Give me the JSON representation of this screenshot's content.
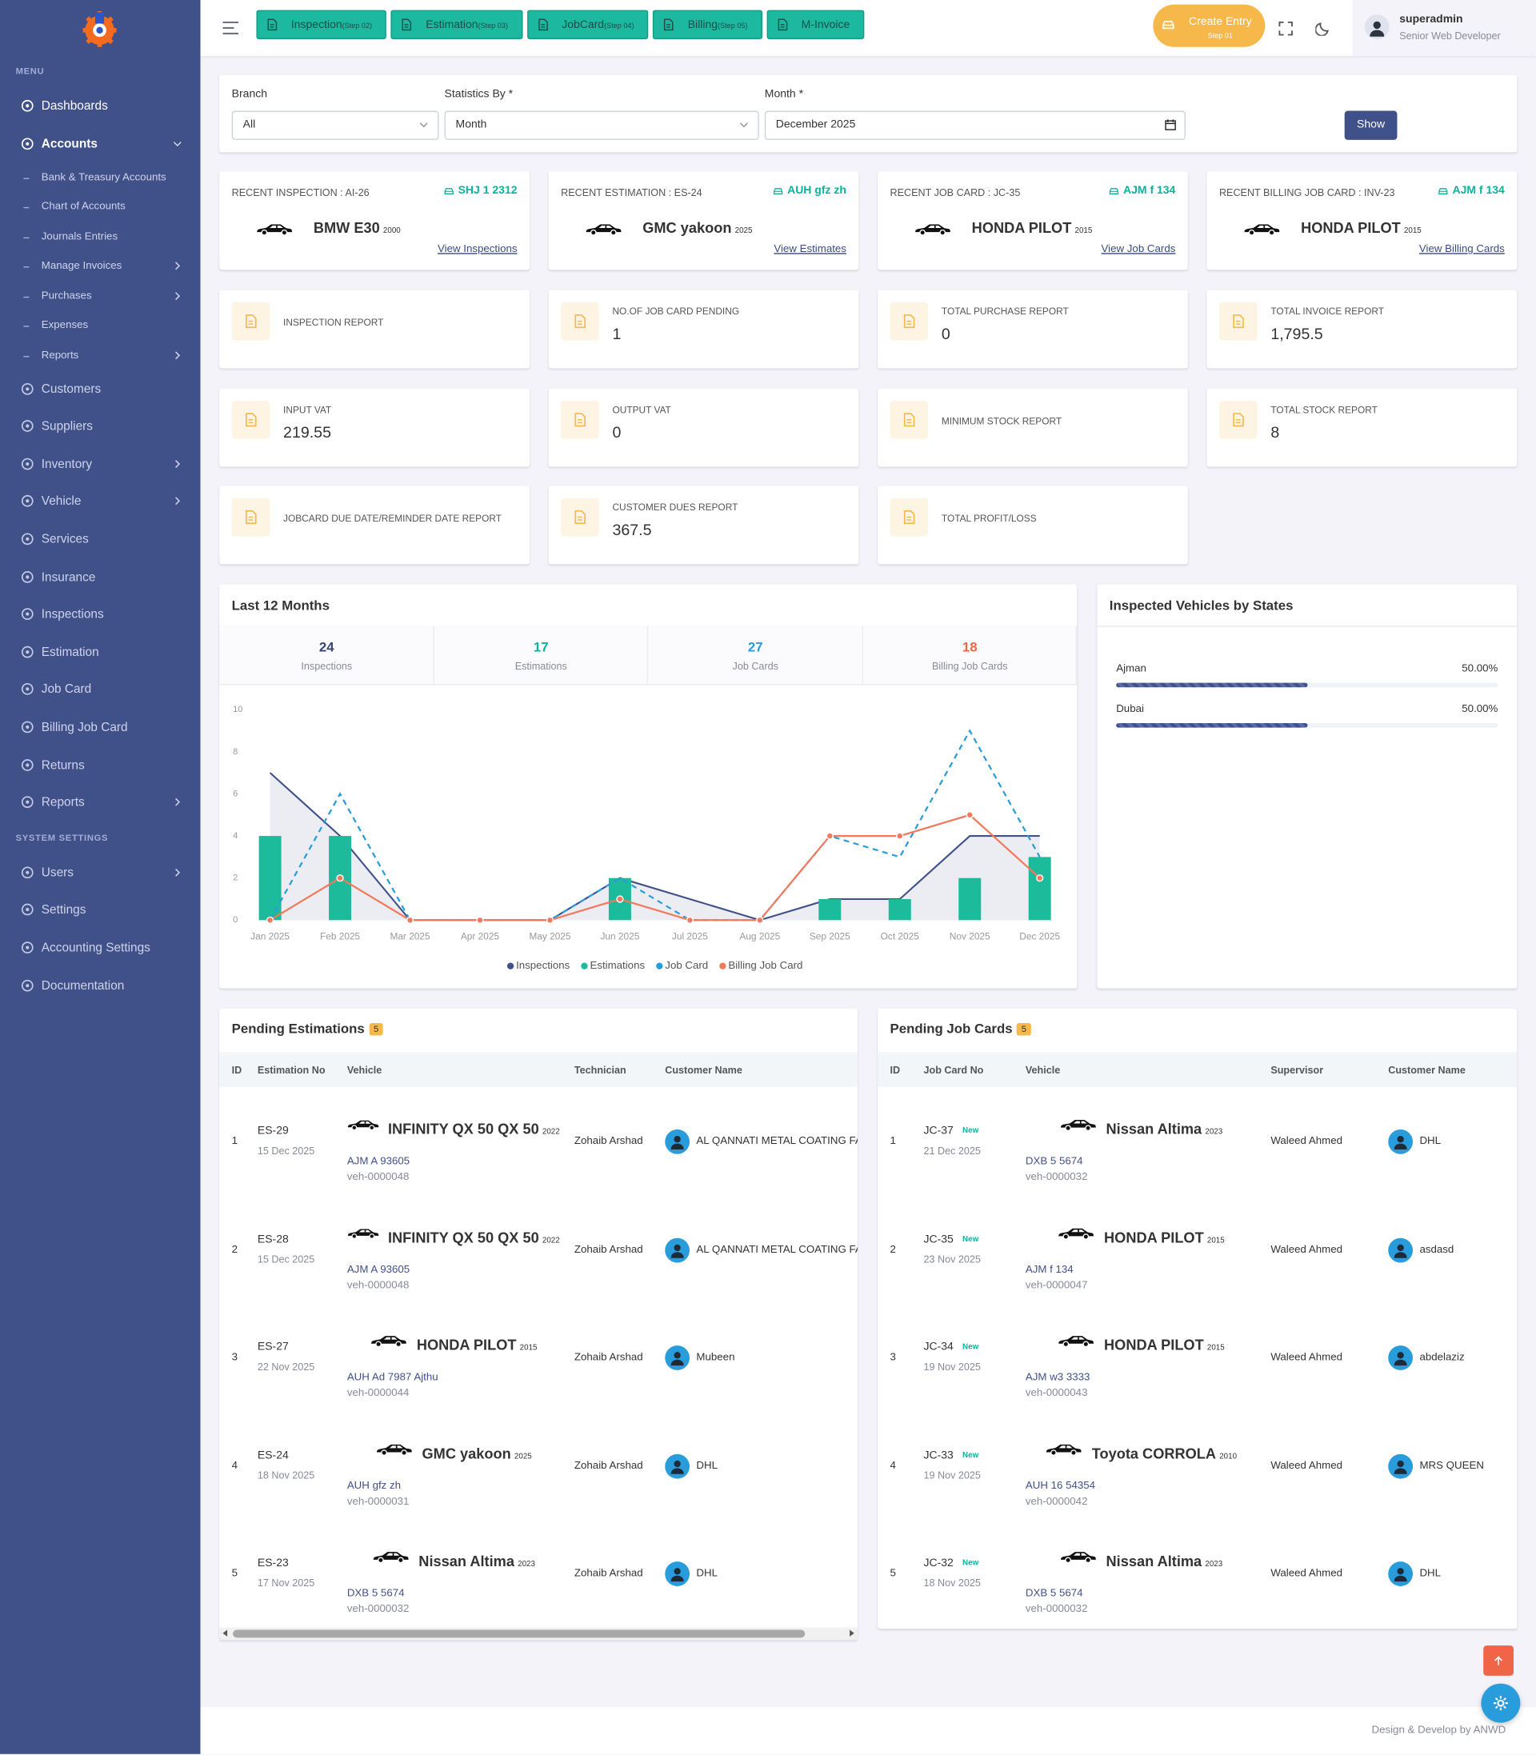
{
  "sidebar": {
    "menu_heading": "MENU",
    "items": [
      {
        "label": "Dashboards",
        "active": true
      },
      {
        "label": "Accounts",
        "submenu": true,
        "expanded": true,
        "children": [
          {
            "label": "Bank & Treasury Accounts"
          },
          {
            "label": "Chart of Accounts"
          },
          {
            "label": "Journals Entries"
          },
          {
            "label": "Manage Invoices",
            "submenu": true
          },
          {
            "label": "Purchases",
            "submenu": true
          },
          {
            "label": "Expenses"
          },
          {
            "label": "Reports",
            "submenu": true
          }
        ]
      },
      {
        "label": "Customers"
      },
      {
        "label": "Suppliers"
      },
      {
        "label": "Inventory",
        "submenu": true
      },
      {
        "label": "Vehicle",
        "submenu": true
      },
      {
        "label": "Services"
      },
      {
        "label": "Insurance"
      },
      {
        "label": "Inspections"
      },
      {
        "label": "Estimation"
      },
      {
        "label": "Job Card"
      },
      {
        "label": "Billing Job Card"
      },
      {
        "label": "Returns"
      },
      {
        "label": "Reports",
        "submenu": true
      }
    ],
    "settings_heading": "SYSTEM SETTINGS",
    "settings_items": [
      {
        "label": "Users",
        "submenu": true
      },
      {
        "label": "Settings"
      },
      {
        "label": "Accounting Settings"
      },
      {
        "label": "Documentation"
      }
    ]
  },
  "topbar": {
    "nav_buttons": [
      {
        "label": "Inspection",
        "step": "(Step 02)"
      },
      {
        "label": "Estimation",
        "step": "(Step 03)"
      },
      {
        "label": "JobCard",
        "step": "(Step 04)"
      },
      {
        "label": "Billing",
        "step": "(Step 05)"
      },
      {
        "label": "M-Invoice"
      }
    ],
    "create_entry": {
      "label": "Create Entry",
      "step": "Step 01"
    },
    "user": {
      "name": "superadmin",
      "role": "Senior Web Developer"
    }
  },
  "filters": {
    "fields": [
      {
        "label": "Branch",
        "value": "All"
      },
      {
        "label": "Statistics By *",
        "value": "Month"
      },
      {
        "label": "Month *",
        "value": "December 2025"
      }
    ],
    "button": "Show"
  },
  "recent": [
    {
      "label": "RECENT INSPECTION : AI-26",
      "plate": "SHJ 1 2312",
      "vehicle": "BMW E30",
      "year": "2000",
      "link": "View Inspections"
    },
    {
      "label": "RECENT ESTIMATION : ES-24",
      "plate": "AUH gfz zh",
      "vehicle": "GMC yakoon",
      "year": "2025",
      "link": "View Estimates"
    },
    {
      "label": "RECENT JOB CARD : JC-35",
      "plate": "AJM f 134",
      "vehicle": "HONDA PILOT",
      "year": "2015",
      "link": "View Job Cards"
    },
    {
      "label": "RECENT BILLING JOB CARD : INV-23",
      "plate": "AJM f 134",
      "vehicle": "HONDA PILOT",
      "year": "2015",
      "link": "View Billing Cards"
    }
  ],
  "reports": [
    {
      "title": "INSPECTION REPORT"
    },
    {
      "title": "NO.OF JOB CARD PENDING",
      "value": "1"
    },
    {
      "title": "TOTAL PURCHASE REPORT",
      "value": "0"
    },
    {
      "title": "TOTAL INVOICE REPORT",
      "value": "1,795.5"
    },
    {
      "title": "INPUT VAT",
      "value": "219.55"
    },
    {
      "title": "OUTPUT VAT",
      "value": "0"
    },
    {
      "title": "MINIMUM STOCK REPORT"
    },
    {
      "title": "TOTAL STOCK REPORT",
      "value": "8"
    },
    {
      "title": "JOBCARD DUE DATE/REMINDER DATE REPORT"
    },
    {
      "title": "CUSTOMER DUES REPORT",
      "value": "367.5"
    },
    {
      "title": "TOTAL PROFIT/LOSS"
    }
  ],
  "chart_data": [
    {
      "type": "combo",
      "title": "Last 12 Months",
      "summary": [
        {
          "value": 24,
          "label": "Inspections",
          "color": "#364574"
        },
        {
          "value": 17,
          "label": "Estimations",
          "color": "#0ab39c"
        },
        {
          "value": 27,
          "label": "Job Cards",
          "color": "#299cdb"
        },
        {
          "value": 18,
          "label": "Billing Job Cards",
          "color": "#f06548"
        }
      ],
      "categories": [
        "Jan 2025",
        "Feb 2025",
        "Mar 2025",
        "Apr 2025",
        "May 2025",
        "Jun 2025",
        "Jul 2025",
        "Aug 2025",
        "Sep 2025",
        "Oct 2025",
        "Nov 2025",
        "Dec 2025"
      ],
      "series": [
        {
          "name": "Inspections",
          "kind": "area",
          "color": "#405189",
          "values": [
            7,
            4,
            0,
            0,
            0,
            2,
            1,
            0,
            1,
            1,
            4,
            4
          ]
        },
        {
          "name": "Estimations",
          "kind": "bar",
          "color": "#1cbb9b",
          "values": [
            4,
            4,
            0,
            0,
            0,
            2,
            0,
            0,
            1,
            1,
            2,
            3
          ]
        },
        {
          "name": "Job Card",
          "kind": "line",
          "dashed": true,
          "color": "#299cdb",
          "values": [
            0,
            6,
            0,
            0,
            0,
            2,
            0,
            0,
            4,
            3,
            9,
            3
          ]
        },
        {
          "name": "Billing Job Card",
          "kind": "line",
          "markers": true,
          "color": "#f1795c",
          "values": [
            0,
            2,
            0,
            0,
            0,
            1,
            0,
            0,
            4,
            4,
            5,
            2
          ]
        }
      ],
      "ylim": [
        0,
        10
      ],
      "yticks": [
        0,
        2,
        4,
        6,
        8,
        10
      ],
      "grid": false
    },
    {
      "type": "progress",
      "title": "Inspected Vehicles by States",
      "categories": [
        "Ajman",
        "Dubai"
      ],
      "values": [
        50,
        50
      ],
      "value_labels": [
        "50.00%",
        "50.00%"
      ],
      "xlim": [
        0,
        100
      ],
      "color": "#405189"
    }
  ],
  "pending_estimations": {
    "title": "Pending Estimations",
    "count": "5",
    "columns": [
      "ID",
      "Estimation No",
      "Vehicle",
      "Technician",
      "Customer Name"
    ],
    "rows": [
      {
        "id": "1",
        "no": "ES-29",
        "date": "15 Dec 2025",
        "vehicle": "INFINITY QX 50 QX 50",
        "year": "2022",
        "plate": "AJM A 93605",
        "veh": "veh-0000048",
        "staff": "Zohaib Arshad",
        "customer": "AL QANNATI METAL COATING FAC"
      },
      {
        "id": "2",
        "no": "ES-28",
        "date": "15 Dec 2025",
        "vehicle": "INFINITY QX 50 QX 50",
        "year": "2022",
        "plate": "AJM A 93605",
        "veh": "veh-0000048",
        "staff": "Zohaib Arshad",
        "customer": "AL QANNATI METAL COATING FAC"
      },
      {
        "id": "3",
        "no": "ES-27",
        "date": "22 Nov 2025",
        "vehicle": "HONDA PILOT",
        "year": "2015",
        "plate": "AUH Ad 7987 Ajthu",
        "veh": "veh-0000044",
        "staff": "Zohaib Arshad",
        "customer": "Mubeen"
      },
      {
        "id": "4",
        "no": "ES-24",
        "date": "18 Nov 2025",
        "vehicle": "GMC yakoon",
        "year": "2025",
        "plate": "AUH gfz zh",
        "veh": "veh-0000031",
        "staff": "Zohaib Arshad",
        "customer": "DHL"
      },
      {
        "id": "5",
        "no": "ES-23",
        "date": "17 Nov 2025",
        "vehicle": "Nissan Altima",
        "year": "2023",
        "plate": "DXB 5 5674",
        "veh": "veh-0000032",
        "staff": "Zohaib Arshad",
        "customer": "DHL"
      }
    ]
  },
  "pending_job_cards": {
    "title": "Pending Job Cards",
    "count": "5",
    "columns": [
      "ID",
      "Job Card No",
      "Vehicle",
      "Supervisor",
      "Customer Name"
    ],
    "rows": [
      {
        "id": "1",
        "no": "JC-37",
        "badge": "New",
        "date": "21 Dec 2025",
        "vehicle": "Nissan Altima",
        "year": "2023",
        "plate": "DXB 5 5674",
        "veh": "veh-0000032",
        "staff": "Waleed Ahmed",
        "customer": "DHL"
      },
      {
        "id": "2",
        "no": "JC-35",
        "badge": "New",
        "date": "23 Nov 2025",
        "vehicle": "HONDA PILOT",
        "year": "2015",
        "plate": "AJM f 134",
        "veh": "veh-0000047",
        "staff": "Waleed Ahmed",
        "customer": "asdasd"
      },
      {
        "id": "3",
        "no": "JC-34",
        "badge": "New",
        "date": "19 Nov 2025",
        "vehicle": "HONDA PILOT",
        "year": "2015",
        "plate": "AJM w3 3333",
        "veh": "veh-0000043",
        "staff": "Waleed Ahmed",
        "customer": "abdelaziz"
      },
      {
        "id": "4",
        "no": "JC-33",
        "badge": "New",
        "date": "19 Nov 2025",
        "vehicle": "Toyota CORROLA",
        "year": "2010",
        "plate": "AUH 16 54354",
        "veh": "veh-0000042",
        "staff": "Waleed Ahmed",
        "customer": "MRS QUEEN"
      },
      {
        "id": "5",
        "no": "JC-32",
        "badge": "New",
        "date": "18 Nov 2025",
        "vehicle": "Nissan Altima",
        "year": "2023",
        "plate": "DXB 5 5674",
        "veh": "veh-0000032",
        "staff": "Waleed Ahmed",
        "customer": "DHL"
      }
    ]
  },
  "footer": {
    "credit": "Design & Develop by ANWD"
  }
}
